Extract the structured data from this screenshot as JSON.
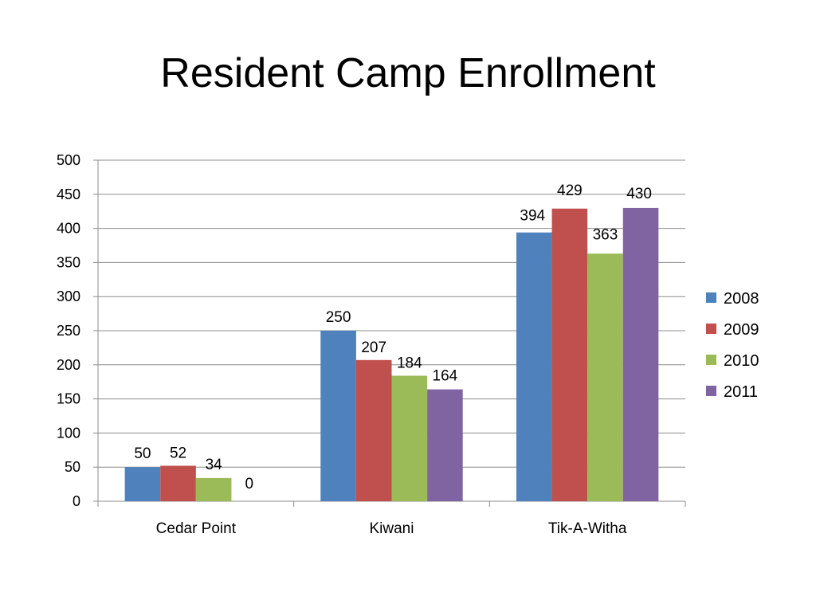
{
  "slide": {
    "title": "Resident Camp Enrollment"
  },
  "chart_data": {
    "type": "bar",
    "title": "",
    "xlabel": "",
    "ylabel": "",
    "categories": [
      "Cedar Point",
      "Kiwani",
      "Tik-A-Witha"
    ],
    "series": [
      {
        "name": "2008",
        "color": "#4F81BD",
        "values": [
          50,
          250,
          394
        ]
      },
      {
        "name": "2009",
        "color": "#C0504D",
        "values": [
          52,
          207,
          429
        ]
      },
      {
        "name": "2010",
        "color": "#9BBB59",
        "values": [
          34,
          184,
          363
        ]
      },
      {
        "name": "2011",
        "color": "#8064A2",
        "values": [
          0,
          164,
          430
        ]
      }
    ],
    "ylim": [
      0,
      500
    ],
    "yticks": [
      0,
      50,
      100,
      150,
      200,
      250,
      300,
      350,
      400,
      450,
      500
    ],
    "grid": true,
    "data_labels": true,
    "legend_position": "right"
  }
}
